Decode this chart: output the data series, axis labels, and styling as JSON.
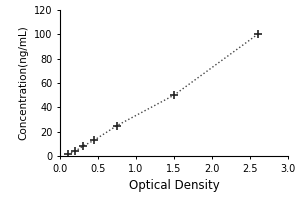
{
  "title": "",
  "xlabel": "Optical Density",
  "ylabel": "Concentration(ng/mL)",
  "x_data": [
    0.1,
    0.2,
    0.3,
    0.45,
    0.75,
    1.5,
    2.6
  ],
  "y_data": [
    1.5,
    4.0,
    8.0,
    13.0,
    25.0,
    50.0,
    100.0
  ],
  "xlim": [
    0,
    3
  ],
  "ylim": [
    0,
    120
  ],
  "xticks": [
    0,
    0.5,
    1,
    1.5,
    2,
    2.5,
    3
  ],
  "yticks": [
    0,
    20,
    40,
    60,
    80,
    100,
    120
  ],
  "line_color": "#444444",
  "marker": "+",
  "marker_color": "#222222",
  "linestyle": "dotted",
  "linewidth": 1.0,
  "markersize": 6,
  "markeredgewidth": 1.2,
  "background_color": "#ffffff",
  "xlabel_fontsize": 8.5,
  "ylabel_fontsize": 7.5,
  "tick_fontsize": 7
}
